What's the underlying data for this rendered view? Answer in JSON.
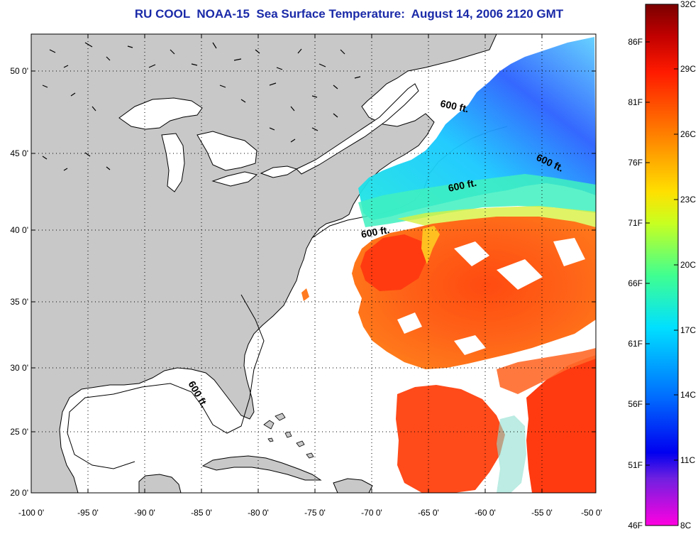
{
  "title": "RU COOL  NOAA-15  Sea Surface Temperature:  August 14, 2006 2120 GMT",
  "map": {
    "lat_ticks": [
      "50 0'",
      "45 0'",
      "40 0'",
      "35 0'",
      "30 0'",
      "25 0'",
      "20 0'"
    ],
    "lon_ticks": [
      "-100 0'",
      "-95 0'",
      "-90 0'",
      "-85 0'",
      "-80 0'",
      "-75 0'",
      "-70 0'",
      "-65 0'",
      "-60 0'",
      "-55 0'",
      "-50 0'"
    ],
    "contour_label": "600 ft.",
    "colors": {
      "land": "#c8c8c8",
      "ocean_nodata": "#ffffff"
    }
  },
  "colorbar": {
    "celsius": [
      "32C",
      "29C",
      "26C",
      "23C",
      "20C",
      "17C",
      "14C",
      "11C",
      "8C"
    ],
    "fahrenheit": [
      "86F",
      "81F",
      "76F",
      "71F",
      "66F",
      "61F",
      "56F",
      "51F",
      "46F"
    ],
    "stops": [
      "#7a0000",
      "#e00000",
      "#ff5a00",
      "#ff9a00",
      "#ffff00",
      "#40ff40",
      "#00e0ff",
      "#0060ff",
      "#0000ff",
      "#9020ff",
      "#ff00ff"
    ]
  }
}
